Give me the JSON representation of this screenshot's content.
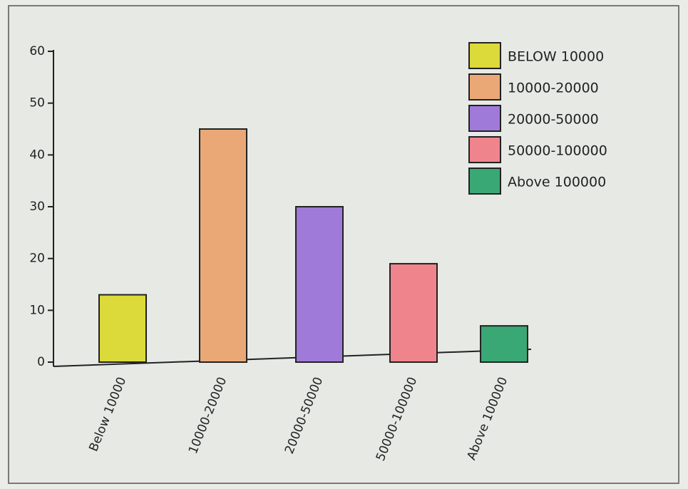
{
  "chart_data": {
    "type": "bar",
    "categories": [
      "Below 10000",
      "10000-20000",
      "20000-50000",
      "50000-100000",
      "Above 100000"
    ],
    "values": [
      13,
      45,
      30,
      19,
      7
    ],
    "colors": [
      "#dcd93a",
      "#eaa877",
      "#a07ad8",
      "#f0848c",
      "#3aa875"
    ],
    "legend": [
      "BELOW 10000",
      "10000-20000",
      "20000-50000",
      "50000-100000",
      "Above 100000"
    ],
    "ylim": [
      0,
      60
    ],
    "yticks": [
      0,
      10,
      20,
      30,
      40,
      50,
      60
    ]
  }
}
